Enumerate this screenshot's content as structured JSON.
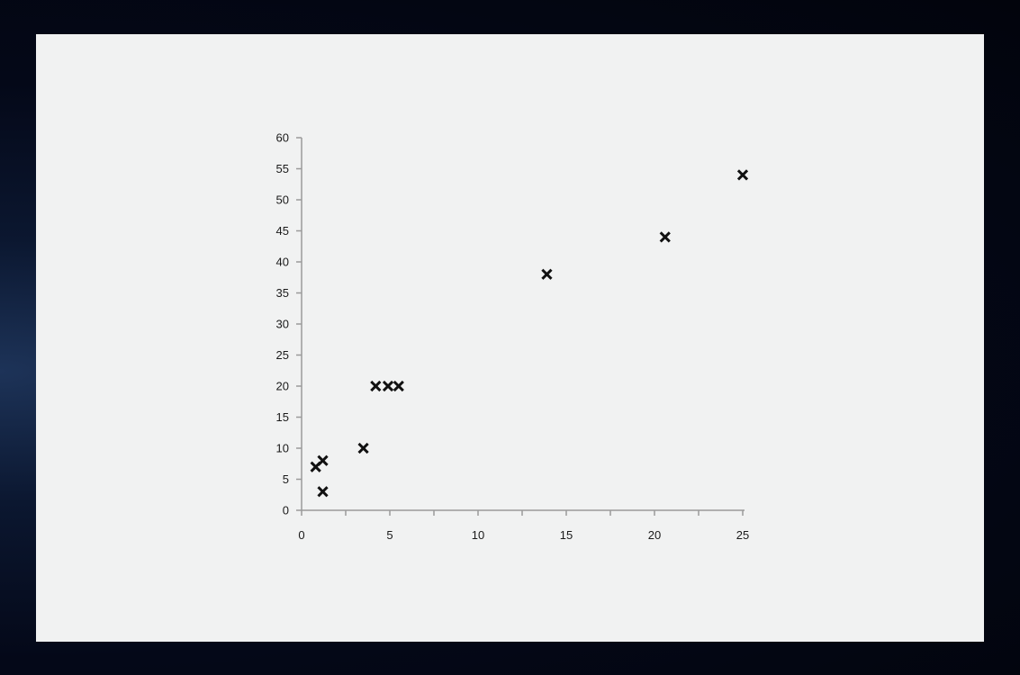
{
  "chart_data": {
    "type": "scatter",
    "title": "",
    "xlabel": "",
    "ylabel": "",
    "xlim": [
      0,
      25
    ],
    "ylim": [
      0,
      60
    ],
    "x_ticks": [
      0,
      5,
      10,
      15,
      20,
      25
    ],
    "y_ticks": [
      0,
      5,
      10,
      15,
      20,
      25,
      30,
      35,
      40,
      45,
      50,
      55,
      60
    ],
    "x_minor_step": 2.5,
    "grid": false,
    "marker": "x",
    "series": [
      {
        "name": "data",
        "points": [
          {
            "x": 0.8,
            "y": 7
          },
          {
            "x": 1.2,
            "y": 8
          },
          {
            "x": 1.2,
            "y": 3
          },
          {
            "x": 3.5,
            "y": 10
          },
          {
            "x": 4.2,
            "y": 20
          },
          {
            "x": 4.9,
            "y": 20
          },
          {
            "x": 5.5,
            "y": 20
          },
          {
            "x": 13.9,
            "y": 38
          },
          {
            "x": 20.6,
            "y": 44
          },
          {
            "x": 25.0,
            "y": 54
          }
        ]
      }
    ]
  }
}
